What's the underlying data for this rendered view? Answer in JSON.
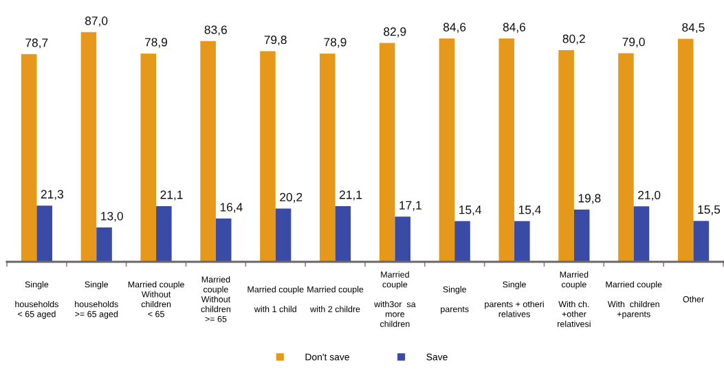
{
  "chart_data": {
    "type": "bar",
    "categories": [
      "Single\n\nhouseholds\n< 65 aged",
      "Single\n\nhouseholds\n>= 65 aged",
      "Married couple\nWithout\nchildren\n< 65",
      "Married\ncouple\nWithout\nchildren\n>= 65",
      "Married couple\n\nwith 1 child",
      "Married couple\n\nwith 2 childre",
      "Married\ncouple\n\nwith3or  sa\nmore\nchildren",
      "Single\n\nparents",
      "Single\n\nparents + otheri\nrelatives",
      "Married\ncouple\n\nWith ch.\n+other\nrelativesi",
      "Married couple\n\nWith  children\n+parents",
      "Other"
    ],
    "series": [
      {
        "name": "Don't save",
        "color": "#e6981b",
        "values": [
          78.7,
          87.0,
          78.9,
          83.6,
          79.8,
          78.9,
          82.9,
          84.6,
          84.6,
          80.2,
          79.0,
          84.5
        ],
        "value_labels": [
          "78,7",
          "87,0",
          "78,9",
          "83,6",
          "79,8",
          "78,9",
          "82,9",
          "84,6",
          "84,6",
          "80,2",
          "79,0",
          "84,5"
        ]
      },
      {
        "name": "Save",
        "color": "#3a4ba6",
        "values": [
          21.3,
          13.0,
          21.1,
          16.4,
          20.2,
          21.1,
          17.1,
          15.4,
          15.4,
          19.8,
          21.0,
          15.5
        ],
        "value_labels": [
          "21,3",
          "13,0",
          "21,1",
          "16,4",
          "20,2",
          "21,1",
          "17,1",
          "15,4",
          "15,4",
          "19,8",
          "21,0",
          "15,5"
        ]
      }
    ],
    "tick_labels": "x",
    "legend": "bottom",
    "grid": false
  }
}
